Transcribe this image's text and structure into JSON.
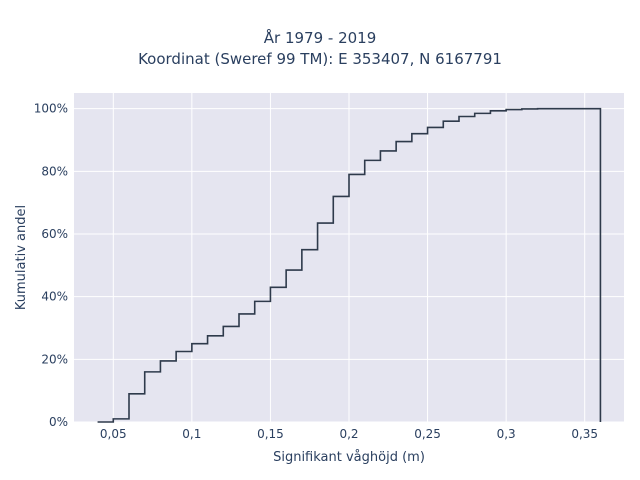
{
  "chart_data": {
    "type": "line",
    "title": "År 1979 - 2019",
    "subtitle": "Koordinat (Sweref 99 TM): E 353407, N 6167791",
    "xlabel": "Signifikant våghöjd (m)",
    "ylabel": "Kumulativ andel",
    "xlim": [
      0.025,
      0.375
    ],
    "ylim": [
      0,
      1.05
    ],
    "x_ticks": [
      0.05,
      0.1,
      0.15,
      0.2,
      0.25,
      0.3,
      0.35
    ],
    "x_tick_labels": [
      "0,05",
      "0,1",
      "0,15",
      "0,2",
      "0,25",
      "0,3",
      "0,35"
    ],
    "y_ticks": [
      0,
      0.2,
      0.4,
      0.6,
      0.8,
      1.0
    ],
    "y_tick_labels": [
      "0%",
      "20%",
      "40%",
      "60%",
      "80%",
      "100%"
    ],
    "grid": true,
    "line_shape": "step",
    "series": [
      {
        "color": "#2e3a4b",
        "x": [
          0.04,
          0.05,
          0.06,
          0.07,
          0.08,
          0.09,
          0.1,
          0.11,
          0.12,
          0.13,
          0.14,
          0.15,
          0.16,
          0.17,
          0.18,
          0.19,
          0.2,
          0.21,
          0.22,
          0.23,
          0.24,
          0.25,
          0.26,
          0.27,
          0.28,
          0.29,
          0.3,
          0.31,
          0.32,
          0.33,
          0.34,
          0.35,
          0.36
        ],
        "y": [
          0.0,
          0.01,
          0.09,
          0.16,
          0.195,
          0.225,
          0.25,
          0.275,
          0.305,
          0.345,
          0.385,
          0.43,
          0.485,
          0.55,
          0.635,
          0.72,
          0.79,
          0.835,
          0.865,
          0.895,
          0.92,
          0.94,
          0.96,
          0.975,
          0.985,
          0.993,
          0.997,
          0.999,
          1.0,
          1.0,
          1.0,
          1.0,
          1.0
        ]
      }
    ]
  }
}
